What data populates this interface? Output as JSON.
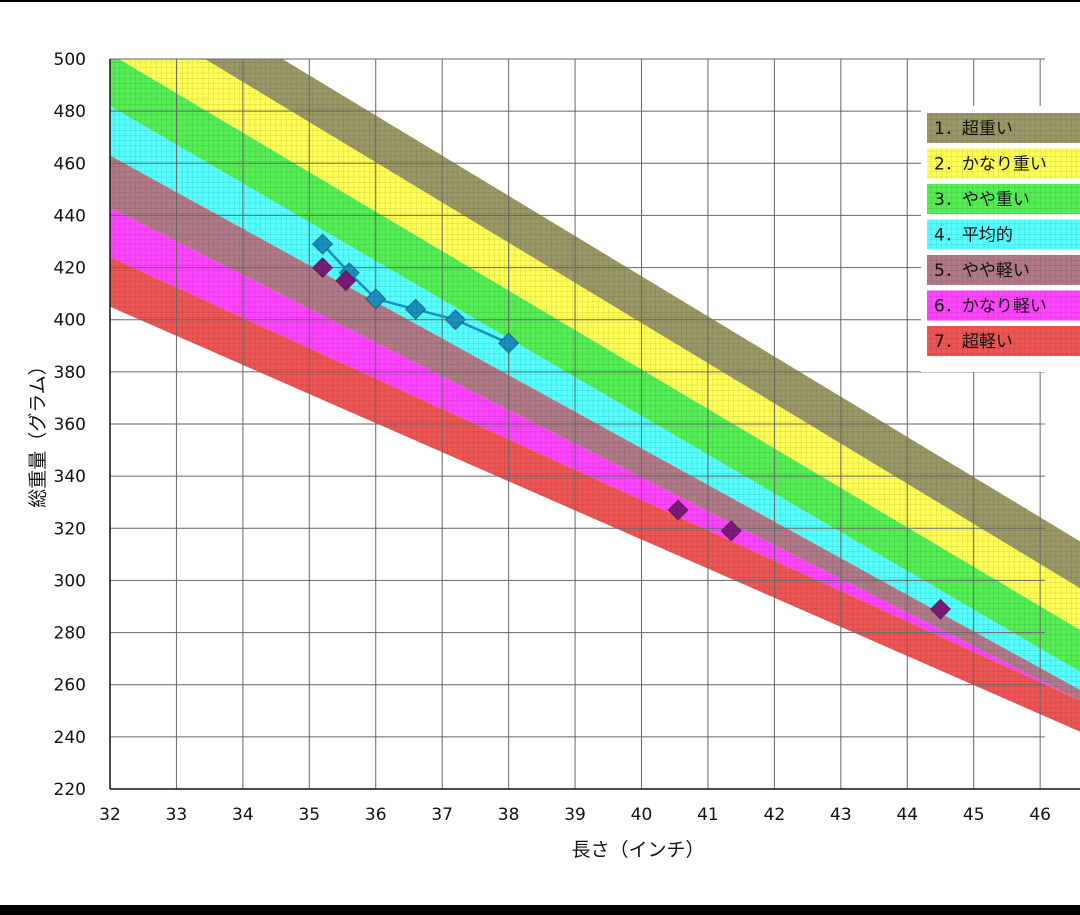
{
  "chart_data": {
    "type": "scatter",
    "title": "",
    "xlabel": "長さ（インチ）",
    "ylabel": "総重量（グラム）",
    "xlim": [
      32,
      46.6
    ],
    "ylim": [
      220,
      500
    ],
    "xticks": [
      32,
      33,
      34,
      35,
      36,
      37,
      38,
      39,
      40,
      41,
      42,
      43,
      44,
      45,
      46
    ],
    "yticks": [
      220,
      240,
      260,
      280,
      300,
      320,
      340,
      360,
      380,
      400,
      420,
      440,
      460,
      480,
      500
    ],
    "grid": true,
    "legend_position": "right",
    "bands": [
      {
        "name": "1．超重い",
        "color": "#9a9866",
        "lower_at_32": 522,
        "upper_at_32": 540,
        "lower_at_46_6": 297,
        "upper_at_46_6": 315
      },
      {
        "name": "2．かなり重い",
        "color": "#ffff55",
        "lower_at_32": 502,
        "upper_at_32": 522,
        "lower_at_46_6": 281,
        "upper_at_46_6": 297
      },
      {
        "name": "3．やや重い",
        "color": "#55ee55",
        "lower_at_32": 482,
        "upper_at_32": 502,
        "lower_at_46_6": 265,
        "upper_at_46_6": 281
      },
      {
        "name": "4．平均的",
        "color": "#55ffff",
        "lower_at_32": 463,
        "upper_at_32": 482,
        "lower_at_46_6": 258,
        "upper_at_46_6": 265
      },
      {
        "name": "5．やや軽い",
        "color": "#b07a88",
        "lower_at_32": 443,
        "upper_at_32": 463,
        "lower_at_46_6": 254,
        "upper_at_46_6": 258
      },
      {
        "name": "6．かなり軽い",
        "color": "#ff44ff",
        "lower_at_32": 424,
        "upper_at_32": 443,
        "lower_at_46_6": 254,
        "upper_at_46_6": 254
      },
      {
        "name": "7．超軽い",
        "color": "#ee5555",
        "lower_at_32": 405,
        "upper_at_32": 424,
        "lower_at_46_6": 242,
        "upper_at_46_6": 254
      }
    ],
    "series": [
      {
        "color": "#1a8fc0",
        "connected": true,
        "marker": "diamond",
        "points": [
          [
            35.2,
            429
          ],
          [
            35.6,
            418
          ],
          [
            36.0,
            408
          ],
          [
            36.6,
            404
          ],
          [
            37.2,
            400
          ],
          [
            38.0,
            391
          ]
        ]
      },
      {
        "color": "#7a1a7a",
        "connected": false,
        "marker": "diamond",
        "points": [
          [
            35.2,
            420
          ],
          [
            35.55,
            415
          ],
          [
            40.55,
            327
          ],
          [
            41.35,
            319
          ],
          [
            44.5,
            289
          ]
        ]
      }
    ]
  }
}
